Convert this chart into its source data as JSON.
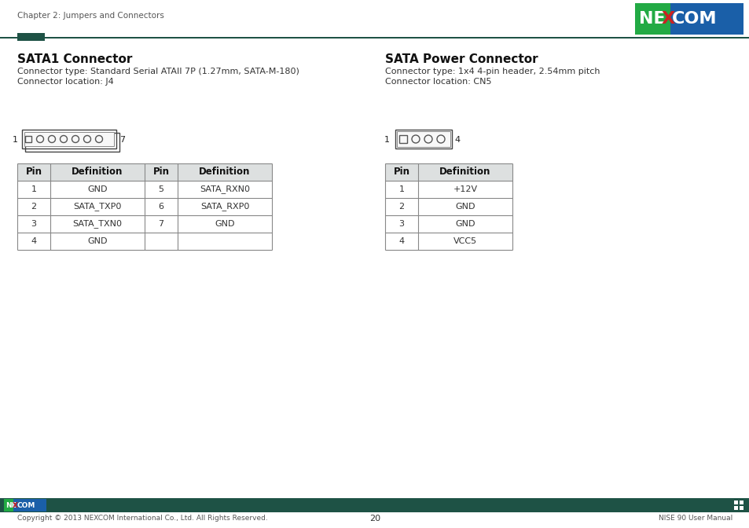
{
  "page_header_left": "Chapter 2: Jumpers and Connectors",
  "section1_title": "SATA1 Connector",
  "section1_line1": "Connector type: Standard Serial ATAII 7P (1.27mm, SATA-M-180)",
  "section1_line2": "Connector location: J4",
  "section2_title": "SATA Power Connector",
  "section2_line1": "Connector type: 1x4 4-pin header, 2.54mm pitch",
  "section2_line2": "Connector location: CN5",
  "table1_headers": [
    "Pin",
    "Definition",
    "Pin",
    "Definition"
  ],
  "table1_rows": [
    [
      "1",
      "GND",
      "5",
      "SATA_RXN0"
    ],
    [
      "2",
      "SATA_TXP0",
      "6",
      "SATA_RXP0"
    ],
    [
      "3",
      "SATA_TXN0",
      "7",
      "GND"
    ],
    [
      "4",
      "GND",
      "",
      ""
    ]
  ],
  "table2_headers": [
    "Pin",
    "Definition"
  ],
  "table2_rows": [
    [
      "1",
      "+12V"
    ],
    [
      "2",
      "GND"
    ],
    [
      "3",
      "GND"
    ],
    [
      "4",
      "VCC5"
    ]
  ],
  "footer_bar_color": "#1e5245",
  "footer_left": "Copyright © 2013 NEXCOM International Co., Ltd. All Rights Reserved.",
  "footer_center": "20",
  "footer_right": "NISE 90 User Manual",
  "header_line_color": "#1e5245",
  "teal_square_color": "#1e5245",
  "bg_color": "#ffffff",
  "nexcom_bg": "#1a5fa8",
  "nexcom_green": "#22aa44",
  "nexcom_red": "#cc2222"
}
